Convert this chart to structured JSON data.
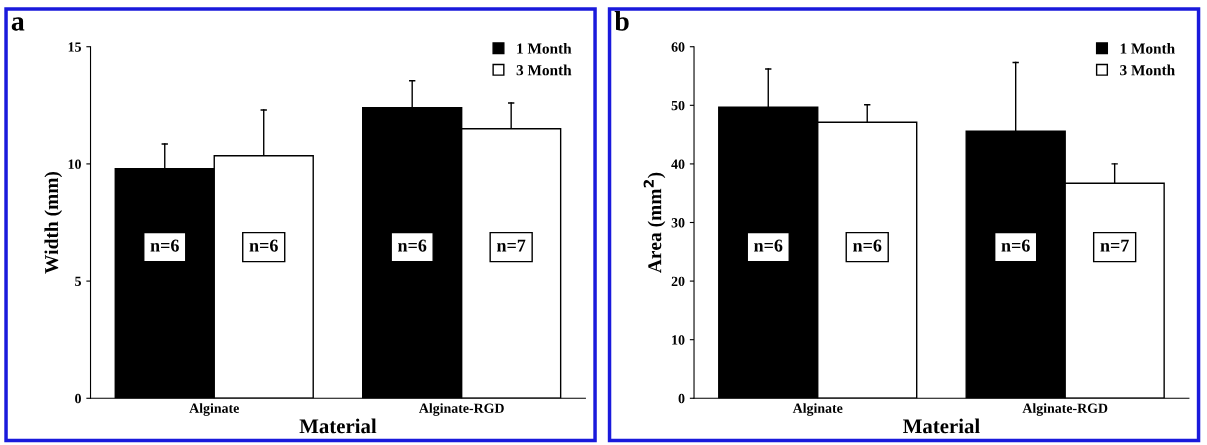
{
  "chart_data": [
    {
      "type": "bar",
      "title": "a",
      "xlabel": "Material",
      "ylabel": "Width (mm)",
      "categories": [
        "Alginate",
        "Alginate-RGD"
      ],
      "ylim": [
        0,
        15
      ],
      "yticks": [
        0,
        5,
        10,
        15
      ],
      "legend": "top right",
      "grid": false,
      "annotations": [
        "n=6",
        "n=6",
        "n=6",
        "n=7"
      ],
      "series": [
        {
          "name": "1 Month",
          "color": "#000000",
          "values": [
            9.8,
            12.4
          ],
          "errors": [
            [
              9.8,
              10.85
            ],
            [
              12.4,
              13.55
            ]
          ]
        },
        {
          "name": "3 Month",
          "color": "#ffffff",
          "values": [
            10.35,
            11.5
          ],
          "errors": [
            [
              10.35,
              12.3
            ],
            [
              11.5,
              12.6
            ]
          ]
        }
      ]
    },
    {
      "type": "bar",
      "title": "b",
      "xlabel": "Material",
      "ylabel": "Area (mm$^{2}$)",
      "categories": [
        "Alginate",
        "Alginate-RGD"
      ],
      "ylim": [
        0,
        60
      ],
      "yticks": [
        0,
        10,
        20,
        30,
        40,
        50,
        60
      ],
      "legend": "top right",
      "grid": false,
      "annotations": [
        "n=6",
        "n=6",
        "n=6",
        "n=7"
      ],
      "series": [
        {
          "name": "1 Month",
          "color": "#000000",
          "values": [
            49.7,
            45.6
          ],
          "errors": [
            [
              49.7,
              56.2
            ],
            [
              45.6,
              57.3
            ]
          ]
        },
        {
          "name": "3 Month",
          "color": "#ffffff",
          "values": [
            47.1,
            36.7
          ],
          "errors": [
            [
              47.1,
              50.1
            ],
            [
              36.7,
              40
            ]
          ]
        }
      ]
    }
  ]
}
